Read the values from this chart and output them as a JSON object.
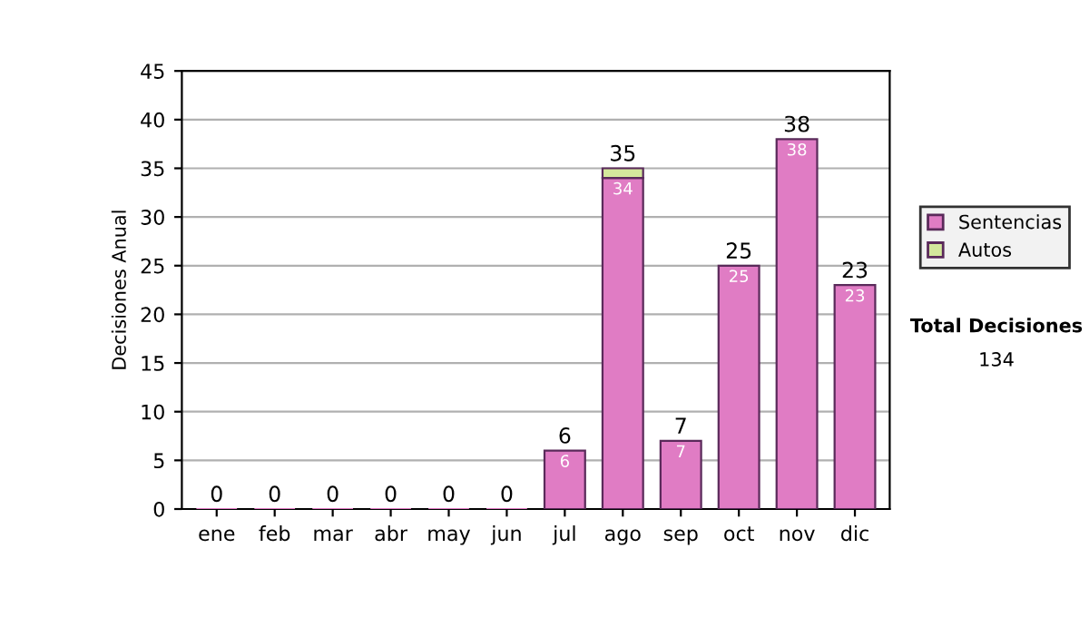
{
  "chart_data": {
    "type": "bar",
    "stacked": true,
    "ylabel": "Decisiones Anual",
    "categories": [
      "ene",
      "feb",
      "mar",
      "abr",
      "may",
      "jun",
      "jul",
      "ago",
      "sep",
      "oct",
      "nov",
      "dic"
    ],
    "series": [
      {
        "name": "Sentencias",
        "color": "#e07cc4",
        "values": [
          0,
          0,
          0,
          0,
          0,
          0,
          6,
          34,
          7,
          25,
          38,
          23
        ],
        "value_labels": [
          null,
          null,
          null,
          null,
          null,
          null,
          "6",
          "34",
          "7",
          "25",
          "38",
          "23"
        ]
      },
      {
        "name": "Autos",
        "color": "#d4e89c",
        "values": [
          null,
          null,
          null,
          null,
          null,
          null,
          null,
          1,
          null,
          null,
          null,
          null
        ]
      }
    ],
    "totals": [
      "0",
      "0",
      "0",
      "0",
      "0",
      "0",
      "6",
      "35",
      "7",
      "25",
      "38",
      "23"
    ],
    "ylim": [
      0,
      45
    ],
    "yticks": [
      0,
      5,
      10,
      15,
      20,
      25,
      30,
      35,
      40,
      45
    ],
    "grid": "y",
    "legend": "right",
    "annotations": [
      "Total Decisiones",
      "134"
    ]
  }
}
